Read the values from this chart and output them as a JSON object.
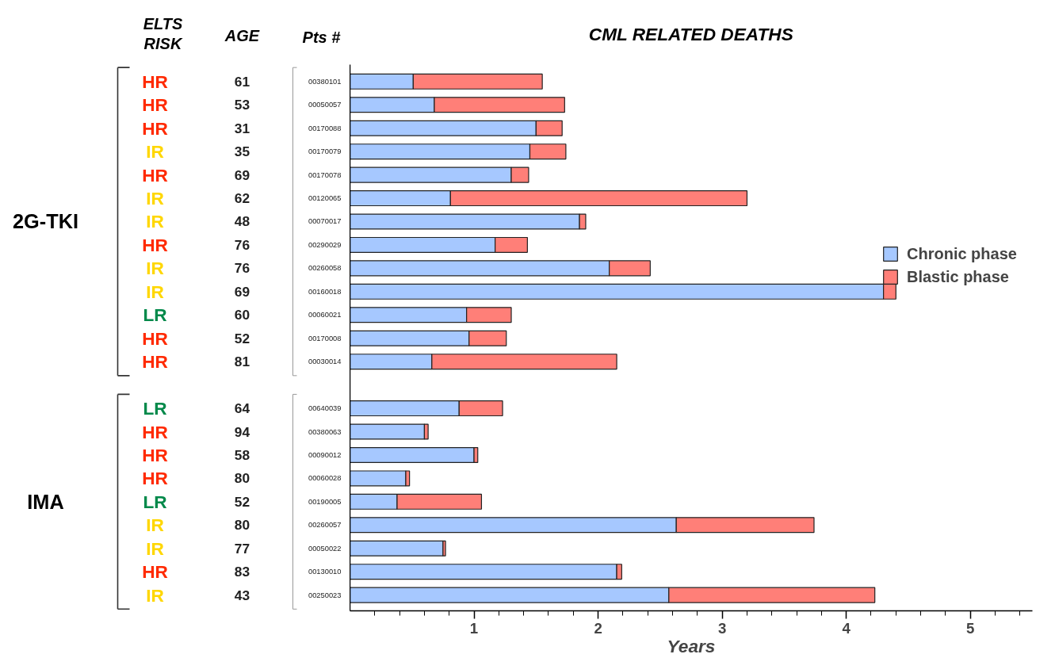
{
  "chart_data": {
    "type": "bar",
    "orientation": "horizontal",
    "stacked": true,
    "title": "CML RELATED DEATHS",
    "xlabel": "Years",
    "categories": [
      "00380101",
      "00050057",
      "00170088",
      "00170079",
      "00170078",
      "00120065",
      "00070017",
      "00290029",
      "00260058",
      "00160018",
      "00060021",
      "00170008",
      "00030014",
      null,
      "00640039",
      "00380063",
      "00090012",
      "00060028",
      "00190005",
      "00260057",
      "00050022",
      "00130010",
      "00250023"
    ],
    "series": [
      {
        "name": "Chronic phase",
        "color": "#a6c8ff",
        "values": [
          0.51,
          0.68,
          1.5,
          1.45,
          1.3,
          0.81,
          1.85,
          1.17,
          2.09,
          4.3,
          0.94,
          0.96,
          0.66,
          null,
          0.88,
          0.6,
          1.0,
          0.45,
          0.38,
          2.63,
          0.75,
          2.15,
          2.57
        ]
      },
      {
        "name": "Blastic phase",
        "color": "#ff7f78",
        "values": [
          1.04,
          1.05,
          0.21,
          0.29,
          0.14,
          2.39,
          0.05,
          0.26,
          0.33,
          0.1,
          0.36,
          0.3,
          1.49,
          null,
          0.35,
          0.03,
          0.03,
          0.03,
          0.68,
          1.11,
          0.02,
          0.04,
          1.66
        ]
      }
    ],
    "xlim": [
      0,
      5.5
    ],
    "xticks": [
      1,
      2,
      3,
      4,
      5
    ],
    "grid": false,
    "legend": "right",
    "annotations": [
      "ELTS RISK",
      "AGE",
      "Pts #",
      "2G-TKI",
      "IMA",
      "HR",
      "HR",
      "HR",
      "IR",
      "HR",
      "IR",
      "IR",
      "HR",
      "IR",
      "IR",
      "LR",
      "HR",
      "HR",
      "LR",
      "HR",
      "HR",
      "HR",
      "LR",
      "IR",
      "IR",
      "HR",
      "IR",
      "61",
      "53",
      "31",
      "35",
      "69",
      "62",
      "48",
      "76",
      "76",
      "69",
      "60",
      "52",
      "81",
      "64",
      "94",
      "58",
      "80",
      "52",
      "80",
      "77",
      "83",
      "43"
    ]
  }
}
